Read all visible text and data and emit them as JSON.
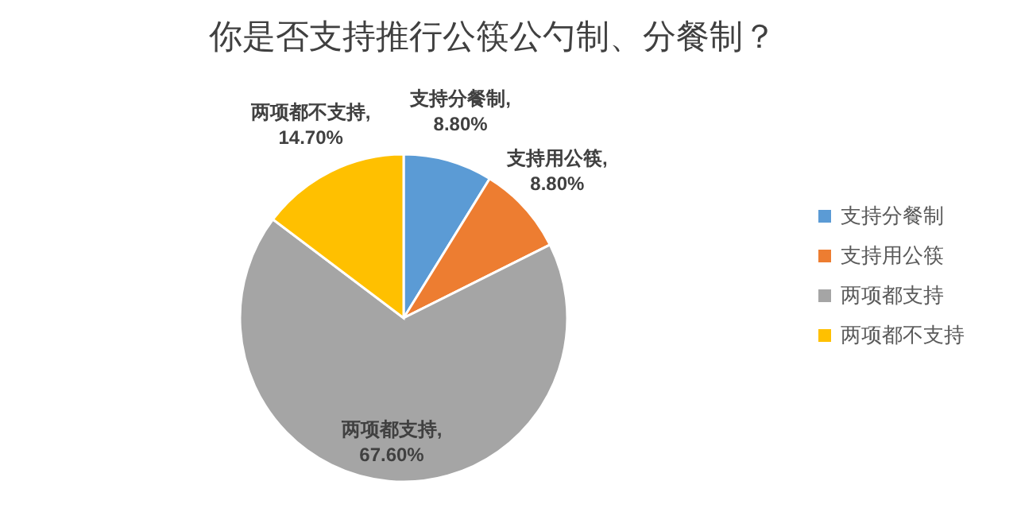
{
  "chart_data": {
    "type": "pie",
    "title": "你是否支持推行公筷公勺制、分餐制？",
    "categories": [
      "支持分餐制",
      "支持用公筷",
      "两项都支持",
      "两项都不支持"
    ],
    "values": [
      8.8,
      8.8,
      67.6,
      14.7
    ],
    "value_labels": [
      "支持分餐制,\n8.80%",
      "支持用公筷,\n8.80%",
      "两项都支持,\n67.60%",
      "两项都不支持,\n14.70%"
    ],
    "colors": [
      "#5b9bd5",
      "#ed7d31",
      "#a5a5a5",
      "#ffc000"
    ],
    "legend": "right"
  }
}
